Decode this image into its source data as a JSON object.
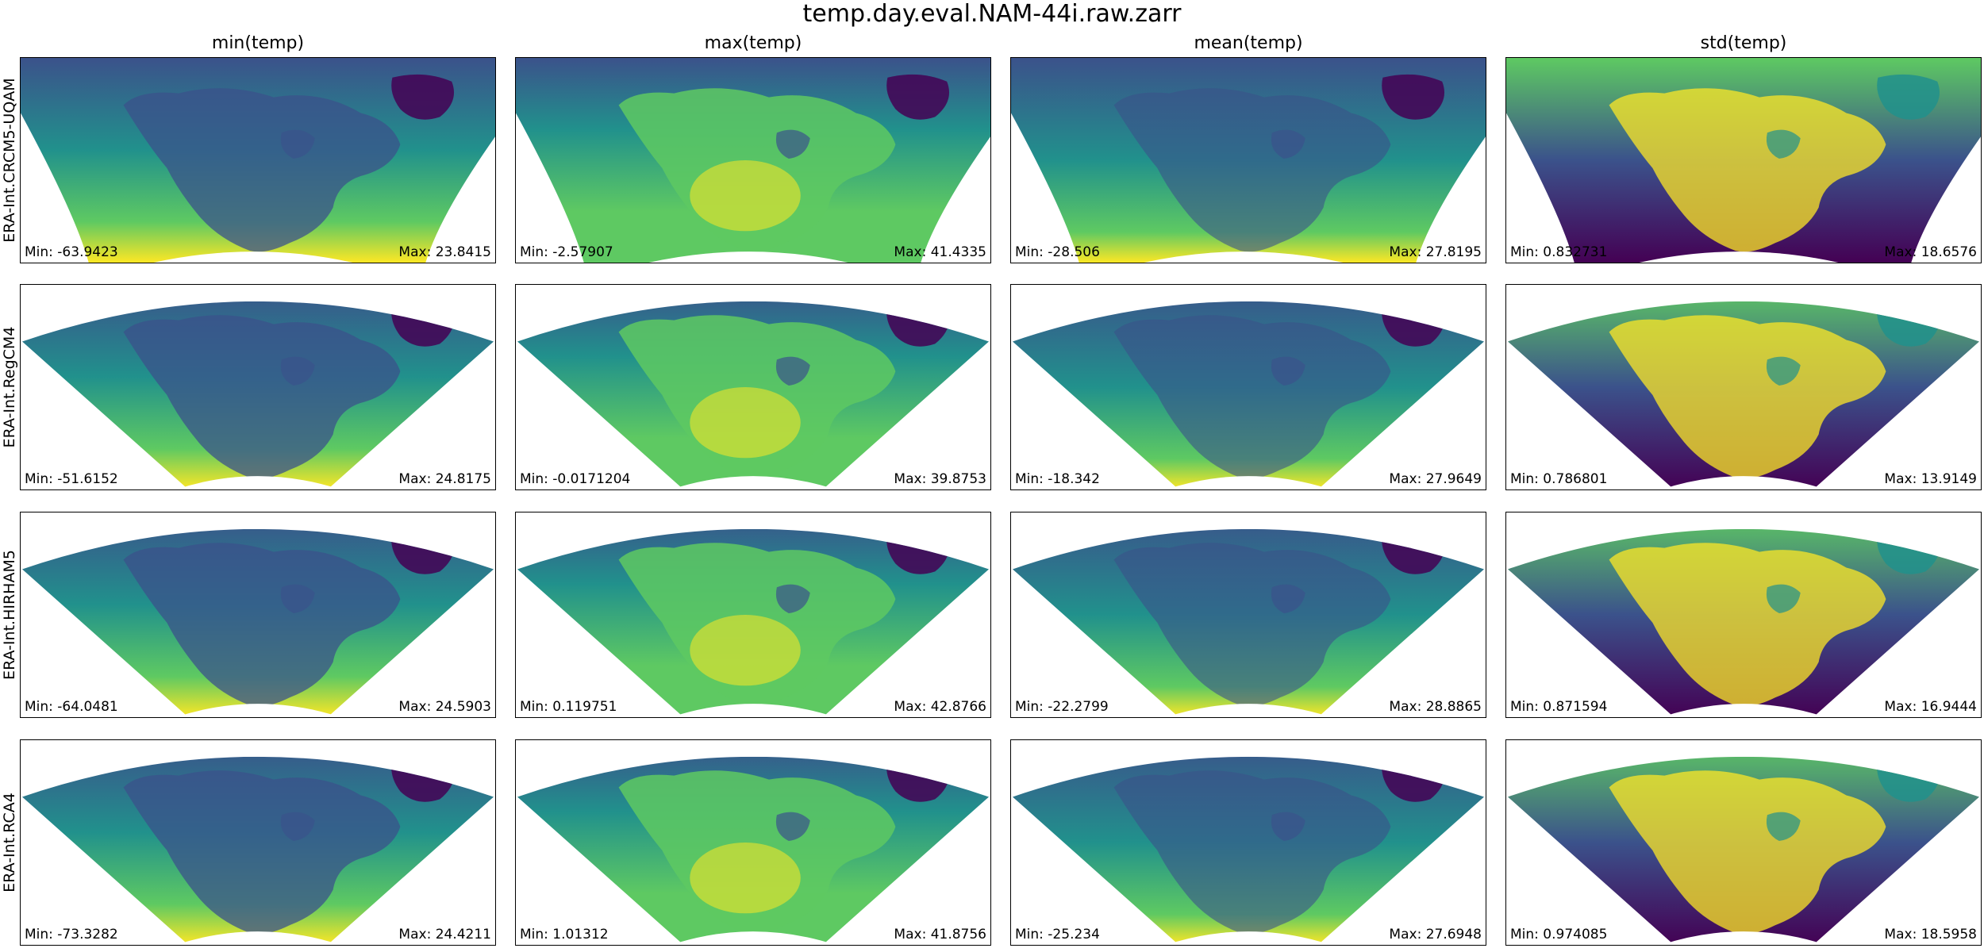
{
  "title": "temp.day.eval.NAM-44i.raw.zarr",
  "columns": [
    "min(temp)",
    "max(temp)",
    "mean(temp)",
    "std(temp)"
  ],
  "rows": [
    "ERA-Int.CRCM5-UQAM",
    "ERA-Int.RegCM4",
    "ERA-Int.HIRHAM5",
    "ERA-Int.RCA4"
  ],
  "stats": [
    [
      {
        "min_label": "Min: -63.9423",
        "max_label": "Max: 23.8415"
      },
      {
        "min_label": "Min: -2.57907",
        "max_label": "Max: 41.4335"
      },
      {
        "min_label": "Min: -28.506",
        "max_label": "Max: 27.8195"
      },
      {
        "min_label": "Min: 0.832731",
        "max_label": "Max: 18.6576"
      }
    ],
    [
      {
        "min_label": "Min: -51.6152",
        "max_label": "Max: 24.8175"
      },
      {
        "min_label": "Min: -0.0171204",
        "max_label": "Max: 39.8753"
      },
      {
        "min_label": "Min: -18.342",
        "max_label": "Max: 27.9649"
      },
      {
        "min_label": "Min: 0.786801",
        "max_label": "Max: 13.9149"
      }
    ],
    [
      {
        "min_label": "Min: -64.0481",
        "max_label": "Max: 24.5903"
      },
      {
        "min_label": "Min: 0.119751",
        "max_label": "Max: 42.8766"
      },
      {
        "min_label": "Min: -22.2799",
        "max_label": "Max: 28.8865"
      },
      {
        "min_label": "Min: 0.871594",
        "max_label": "Max: 16.9444"
      }
    ],
    [
      {
        "min_label": "Min: -73.3282",
        "max_label": "Max: 24.4211"
      },
      {
        "min_label": "Min: 1.01312",
        "max_label": "Max: 41.8756"
      },
      {
        "min_label": "Min: -25.234",
        "max_label": "Max: 27.6948"
      },
      {
        "min_label": "Min: 0.974085",
        "max_label": "Max: 18.5958"
      }
    ]
  ],
  "colormap": "viridis",
  "palette": {
    "dark": "#440154",
    "indigo": "#3b528b",
    "teal": "#21918c",
    "green": "#5ec962",
    "yellow": "#fde725",
    "deep_purple": "#46085c"
  }
}
